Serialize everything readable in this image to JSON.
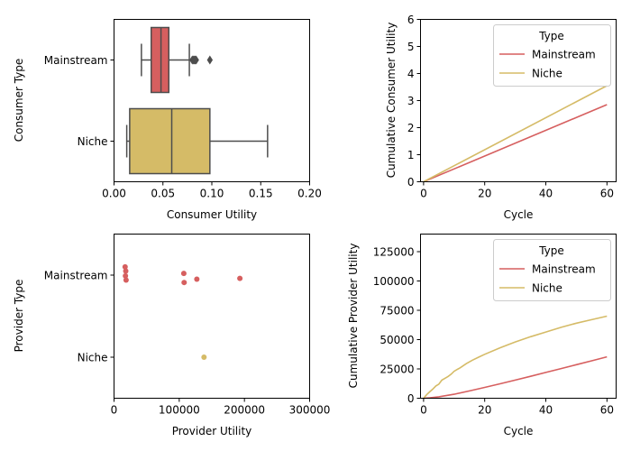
{
  "colors": {
    "mainstream": "#d65f5f",
    "niche": "#d5bb67",
    "box_edge": "#4d4d4d",
    "axis": "#000000"
  },
  "chart_data": [
    {
      "id": "consumer_box",
      "type": "box",
      "xlabel": "Consumer Utility",
      "ylabel": "Consumer Type",
      "xlim": [
        0,
        0.2
      ],
      "xticks": [
        0.0,
        0.05,
        0.1,
        0.15,
        0.2
      ],
      "xtick_labels": [
        "0.00",
        "0.05",
        "0.10",
        "0.15",
        "0.20"
      ],
      "categories": [
        "Mainstream",
        "Niche"
      ],
      "boxes": [
        {
          "name": "Mainstream",
          "color_key": "mainstream",
          "whisker_low": 0.028,
          "q1": 0.038,
          "median": 0.048,
          "q3": 0.056,
          "whisker_high": 0.077,
          "outliers": [
            0.08,
            0.081,
            0.082,
            0.083,
            0.084,
            0.098
          ]
        },
        {
          "name": "Niche",
          "color_key": "niche",
          "whisker_low": 0.013,
          "q1": 0.016,
          "median": 0.059,
          "q3": 0.098,
          "whisker_high": 0.157,
          "outliers": []
        }
      ]
    },
    {
      "id": "consumer_cumulative",
      "type": "line",
      "xlabel": "Cycle",
      "ylabel": "Cumulative Consumer Utility",
      "xlim": [
        -1,
        63
      ],
      "ylim": [
        0,
        6
      ],
      "xticks": [
        0,
        20,
        40,
        60
      ],
      "xtick_labels": [
        "0",
        "20",
        "40",
        "60"
      ],
      "yticks": [
        0,
        1,
        2,
        3,
        4,
        5,
        6
      ],
      "ytick_labels": [
        "0",
        "1",
        "2",
        "3",
        "4",
        "5",
        "6"
      ],
      "legend": {
        "title": "Type",
        "position": "top-right",
        "entries": [
          "Mainstream",
          "Niche"
        ]
      },
      "series": [
        {
          "name": "Mainstream",
          "color_key": "mainstream",
          "x": [
            0,
            60
          ],
          "y": [
            0,
            2.85
          ]
        },
        {
          "name": "Niche",
          "color_key": "niche",
          "x": [
            0,
            60
          ],
          "y": [
            0,
            3.55
          ]
        }
      ]
    },
    {
      "id": "provider_strip",
      "type": "scatter",
      "xlabel": "Provider Utility",
      "ylabel": "Provider Type",
      "xlim": [
        0,
        300000
      ],
      "xticks": [
        0,
        100000,
        200000,
        300000
      ],
      "xtick_labels": [
        "0",
        "100000",
        "200000",
        "300000"
      ],
      "categories": [
        "Mainstream",
        "Niche"
      ],
      "points": [
        {
          "category": "Mainstream",
          "color_key": "mainstream",
          "x": 17000,
          "jitter": -0.1
        },
        {
          "category": "Mainstream",
          "color_key": "mainstream",
          "x": 18000,
          "jitter": -0.05
        },
        {
          "category": "Mainstream",
          "color_key": "mainstream",
          "x": 17500,
          "jitter": 0.01
        },
        {
          "category": "Mainstream",
          "color_key": "mainstream",
          "x": 18500,
          "jitter": 0.06
        },
        {
          "category": "Mainstream",
          "color_key": "mainstream",
          "x": 107000,
          "jitter": -0.02
        },
        {
          "category": "Mainstream",
          "color_key": "mainstream",
          "x": 107500,
          "jitter": 0.09
        },
        {
          "category": "Mainstream",
          "color_key": "mainstream",
          "x": 127000,
          "jitter": 0.05
        },
        {
          "category": "Mainstream",
          "color_key": "mainstream",
          "x": 193000,
          "jitter": 0.04
        },
        {
          "category": "Niche",
          "color_key": "niche",
          "x": 138000,
          "jitter": 0.0
        }
      ]
    },
    {
      "id": "provider_cumulative",
      "type": "line",
      "xlabel": "Cycle",
      "ylabel": "Cumulative Provider Utility",
      "xlim": [
        -1,
        63
      ],
      "ylim": [
        0,
        140000
      ],
      "xticks": [
        0,
        20,
        40,
        60
      ],
      "xtick_labels": [
        "0",
        "20",
        "40",
        "60"
      ],
      "yticks": [
        0,
        25000,
        50000,
        75000,
        100000,
        125000
      ],
      "ytick_labels": [
        "0",
        "25000",
        "50000",
        "75000",
        "100000",
        "125000"
      ],
      "legend": {
        "title": "Type",
        "position": "top-right",
        "entries": [
          "Mainstream",
          "Niche"
        ]
      },
      "series": [
        {
          "name": "Mainstream",
          "color_key": "mainstream",
          "x": [
            0,
            2,
            5,
            10,
            15,
            20,
            25,
            30,
            35,
            40,
            45,
            50,
            55,
            60
          ],
          "y": [
            0,
            400,
            1200,
            3400,
            6200,
            9200,
            12300,
            15500,
            18700,
            22000,
            25300,
            28600,
            31900,
            35300
          ]
        },
        {
          "name": "Niche",
          "color_key": "niche",
          "x": [
            0,
            1,
            2,
            3,
            4,
            5,
            6,
            7,
            8,
            9,
            10,
            11,
            12,
            14,
            16,
            18,
            20,
            25,
            30,
            35,
            40,
            45,
            50,
            55,
            60
          ],
          "y": [
            0,
            3000,
            5500,
            7800,
            10500,
            12000,
            15500,
            17000,
            18500,
            20500,
            23000,
            24500,
            26000,
            29500,
            32500,
            35000,
            37500,
            43000,
            48000,
            52500,
            56500,
            60500,
            64000,
            67000,
            70000
          ]
        }
      ]
    }
  ]
}
